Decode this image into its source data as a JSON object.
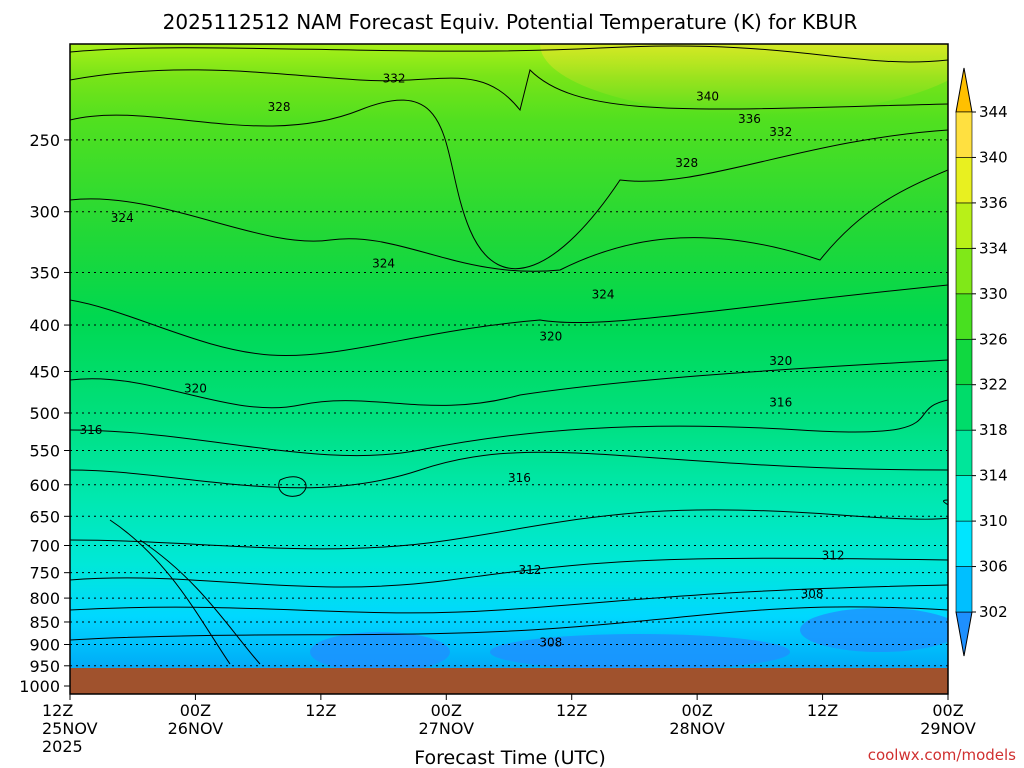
{
  "chart_data": {
    "type": "heatmap",
    "title": "2025112512 NAM Forecast Equiv. Potential Temperature (K) for KBUR",
    "xlabel": "Forecast Time (UTC)",
    "credit": "coolwx.com/models",
    "x_ticks": [
      {
        "hours": 0,
        "top": "12Z",
        "mid": "25NOV",
        "bottom": "2025"
      },
      {
        "hours": 12,
        "top": "00Z",
        "mid": "26NOV",
        "bottom": ""
      },
      {
        "hours": 24,
        "top": "12Z",
        "mid": "",
        "bottom": ""
      },
      {
        "hours": 36,
        "top": "00Z",
        "mid": "27NOV",
        "bottom": ""
      },
      {
        "hours": 48,
        "top": "12Z",
        "mid": "",
        "bottom": ""
      },
      {
        "hours": 60,
        "top": "00Z",
        "mid": "28NOV",
        "bottom": ""
      },
      {
        "hours": 72,
        "top": "12Z",
        "mid": "",
        "bottom": ""
      },
      {
        "hours": 84,
        "top": "00Z",
        "mid": "29NOV",
        "bottom": ""
      }
    ],
    "x_range_hours": [
      0,
      84
    ],
    "y_ticks": [
      250,
      300,
      350,
      400,
      450,
      500,
      550,
      600,
      650,
      700,
      750,
      800,
      850,
      900,
      950,
      1000
    ],
    "y_range_hPa": [
      1000,
      200
    ],
    "ground_level_hPa": 968,
    "colorbar": {
      "levels": [
        302,
        306,
        310,
        314,
        318,
        322,
        326,
        330,
        334,
        336,
        340,
        344
      ],
      "labels": [
        "302",
        "306",
        "310",
        "314",
        "318",
        "322",
        "326",
        "330",
        "334",
        "336",
        "340",
        "344"
      ],
      "colors": [
        "#1e90ff",
        "#00bfff",
        "#00e5ff",
        "#00f0d0",
        "#00e69a",
        "#00dc6a",
        "#10d840",
        "#48e020",
        "#80e818",
        "#b8f018",
        "#e8f020",
        "#ffe040",
        "#ffc000"
      ]
    },
    "contour_labels": [
      {
        "value": "332",
        "hour": 31,
        "hPa": 214
      },
      {
        "value": "340",
        "hour": 61,
        "hPa": 224
      },
      {
        "value": "336",
        "hour": 65,
        "hPa": 237
      },
      {
        "value": "332",
        "hour": 68,
        "hPa": 245
      },
      {
        "value": "328",
        "hour": 20,
        "hPa": 230
      },
      {
        "value": "328",
        "hour": 59,
        "hPa": 265
      },
      {
        "value": "324",
        "hour": 5,
        "hPa": 305
      },
      {
        "value": "324",
        "hour": 30,
        "hPa": 342
      },
      {
        "value": "324",
        "hour": 51,
        "hPa": 370
      },
      {
        "value": "320",
        "hour": 46,
        "hPa": 412
      },
      {
        "value": "320",
        "hour": 68,
        "hPa": 438
      },
      {
        "value": "320",
        "hour": 12,
        "hPa": 470
      },
      {
        "value": "316",
        "hour": 68,
        "hPa": 487
      },
      {
        "value": "316",
        "hour": 2,
        "hPa": 522
      },
      {
        "value": "316",
        "hour": 43,
        "hPa": 590
      },
      {
        "value": "312",
        "hour": 44,
        "hPa": 745
      },
      {
        "value": "312",
        "hour": 73,
        "hPa": 718
      },
      {
        "value": "308",
        "hour": 71,
        "hPa": 792
      },
      {
        "value": "308",
        "hour": 46,
        "hPa": 896
      }
    ]
  }
}
